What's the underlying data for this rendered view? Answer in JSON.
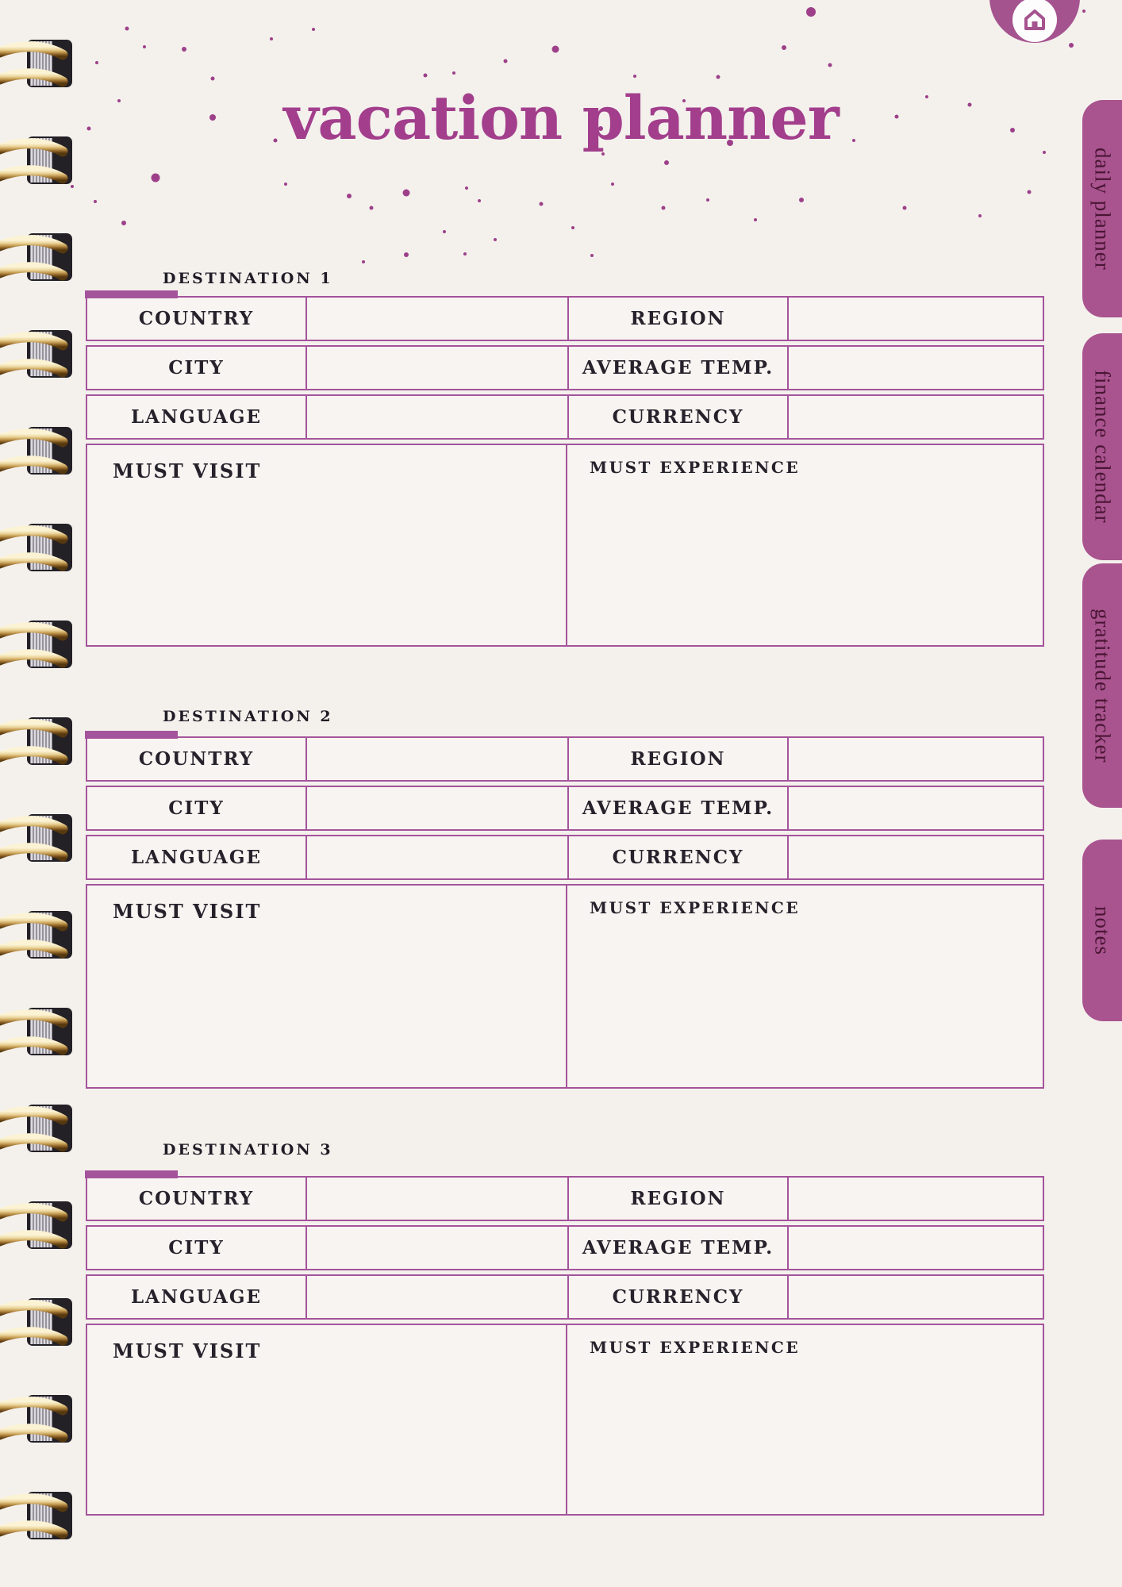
{
  "title": "vacation planner",
  "home_button": {
    "icon_name": "home-icon"
  },
  "colors": {
    "page_bg": "#F4F1ED",
    "cell_bg": "#F8F4F1",
    "border_magenta": "#A4549B",
    "tab_purple": "#A9548F",
    "title_purple": "#A23E8C",
    "tab_text": "#4A1534",
    "ink": "#26222C",
    "coil_gold": "#D9B97B"
  },
  "tabs": [
    {
      "label": "daily planner"
    },
    {
      "label": "finance calendar"
    },
    {
      "label": "gratitude tracker"
    },
    {
      "label": "notes"
    }
  ],
  "destinations": [
    {
      "heading": "DESTINATION 1",
      "rows": [
        {
          "left_label": "COUNTRY",
          "left_value": "",
          "right_label": "REGION",
          "right_value": ""
        },
        {
          "left_label": "CITY",
          "left_value": "",
          "right_label": "AVERAGE TEMP.",
          "right_value": ""
        },
        {
          "left_label": "LANGUAGE",
          "left_value": "",
          "right_label": "CURRENCY",
          "right_value": ""
        }
      ],
      "must_visit": {
        "label": "MUST VISIT",
        "value": ""
      },
      "must_experience": {
        "label": "MUST EXPERIENCE",
        "value": ""
      }
    },
    {
      "heading": "DESTINATION 2",
      "rows": [
        {
          "left_label": "COUNTRY",
          "left_value": "",
          "right_label": "REGION",
          "right_value": ""
        },
        {
          "left_label": "CITY",
          "left_value": "",
          "right_label": "AVERAGE TEMP.",
          "right_value": ""
        },
        {
          "left_label": "LANGUAGE",
          "left_value": "",
          "right_label": "CURRENCY",
          "right_value": ""
        }
      ],
      "must_visit": {
        "label": "MUST VISIT",
        "value": ""
      },
      "must_experience": {
        "label": "MUST EXPERIENCE",
        "value": ""
      }
    },
    {
      "heading": "DESTINATION 3",
      "rows": [
        {
          "left_label": "COUNTRY",
          "left_value": "",
          "right_label": "REGION",
          "right_value": ""
        },
        {
          "left_label": "CITY",
          "left_value": "",
          "right_label": "AVERAGE TEMP.",
          "right_value": ""
        },
        {
          "left_label": "LANGUAGE",
          "left_value": "",
          "right_label": "CURRENCY",
          "right_value": ""
        }
      ],
      "must_visit": {
        "label": "MUST VISIT",
        "value": ""
      },
      "must_experience": {
        "label": "MUST EXPERIENCE",
        "value": ""
      }
    }
  ]
}
